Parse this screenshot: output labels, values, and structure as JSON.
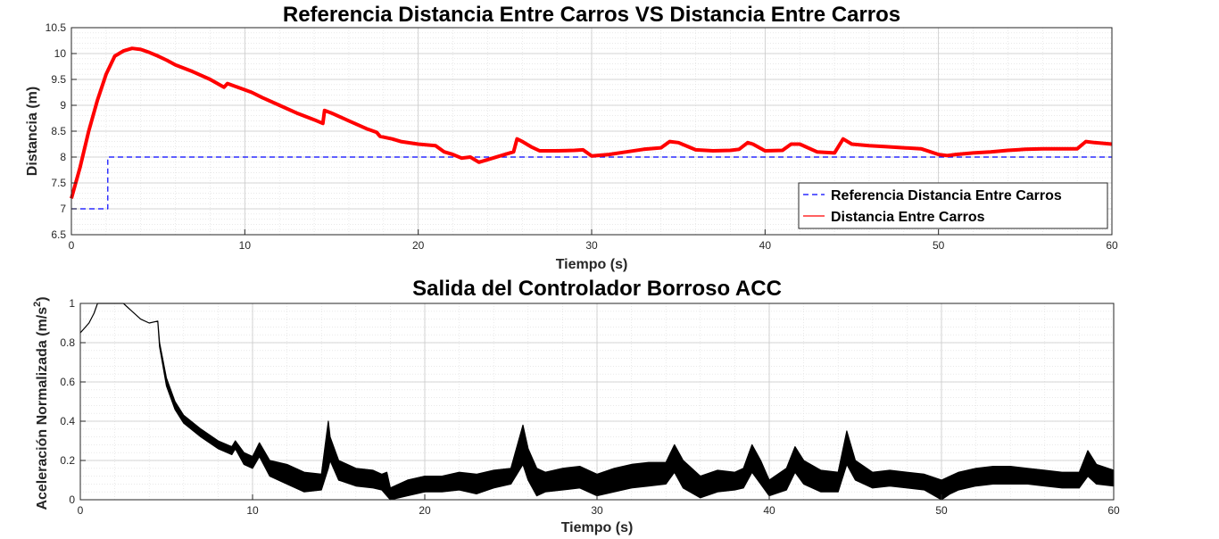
{
  "chart_data": [
    {
      "type": "line",
      "title": "Referencia Distancia Entre Carros VS Distancia Entre Carros",
      "xlabel": "Tiempo (s)",
      "ylabel": "Distancia (m)",
      "xlim": [
        0,
        60
      ],
      "ylim": [
        6.5,
        10.5
      ],
      "xticks": [
        0,
        10,
        20,
        30,
        40,
        50,
        60
      ],
      "yticks": [
        6.5,
        7,
        7.5,
        8,
        8.5,
        9,
        9.5,
        10,
        10.5
      ],
      "grid": true,
      "legend_position": "bottom-right",
      "series": [
        {
          "name": "Referencia Distancia Entre Carros",
          "color": "#0000ff",
          "style": "dashed",
          "x": [
            0,
            2.1,
            2.1,
            60
          ],
          "y": [
            7,
            7,
            8,
            8
          ]
        },
        {
          "name": "Distancia Entre Carros",
          "color": "#ff0000",
          "style": "solid",
          "x": [
            0,
            0.5,
            1,
            1.5,
            2,
            2.5,
            3,
            3.5,
            4,
            4.5,
            5,
            5.5,
            6,
            7,
            8,
            8.8,
            9,
            10,
            10.4,
            11,
            12,
            13,
            14,
            14.5,
            14.6,
            15,
            16,
            17,
            17.6,
            17.8,
            18.5,
            19,
            20,
            21,
            21.5,
            22,
            22.5,
            23,
            23.5,
            24,
            25,
            25.5,
            25.7,
            26,
            26.5,
            27,
            28,
            29,
            29.5,
            30,
            31,
            32,
            33,
            34,
            34.5,
            35,
            36,
            37,
            38,
            38.5,
            39,
            39.3,
            40,
            41,
            41.5,
            42,
            43,
            44,
            44.5,
            45,
            46,
            47,
            48,
            49,
            50,
            50.5,
            51,
            52,
            53,
            54,
            55,
            56,
            57,
            58,
            58.5,
            59,
            60
          ],
          "y": [
            7.2,
            7.8,
            8.5,
            9.1,
            9.6,
            9.95,
            10.05,
            10.1,
            10.08,
            10.02,
            9.95,
            9.87,
            9.78,
            9.65,
            9.5,
            9.35,
            9.42,
            9.3,
            9.25,
            9.15,
            9.0,
            8.85,
            8.72,
            8.65,
            8.9,
            8.85,
            8.7,
            8.55,
            8.48,
            8.4,
            8.35,
            8.3,
            8.25,
            8.22,
            8.1,
            8.05,
            7.98,
            8.0,
            7.9,
            7.95,
            8.05,
            8.1,
            8.35,
            8.3,
            8.2,
            8.12,
            8.12,
            8.13,
            8.14,
            8.02,
            8.05,
            8.1,
            8.15,
            8.18,
            8.3,
            8.28,
            8.14,
            8.12,
            8.13,
            8.15,
            8.28,
            8.25,
            8.12,
            8.13,
            8.25,
            8.25,
            8.1,
            8.08,
            8.35,
            8.25,
            8.22,
            8.2,
            8.18,
            8.16,
            8.05,
            8.03,
            8.05,
            8.08,
            8.1,
            8.13,
            8.15,
            8.16,
            8.16,
            8.16,
            8.3,
            8.28,
            8.25
          ]
        }
      ]
    },
    {
      "type": "line",
      "title": "Salida del Controlador Borroso ACC",
      "xlabel": "Tiempo (s)",
      "ylabel": "Aceleración Normalizada (m/s",
      "ylabel_superscript": "2",
      "ylabel_suffix": ")",
      "xlim": [
        0,
        60
      ],
      "ylim": [
        0,
        1
      ],
      "xticks": [
        0,
        10,
        20,
        30,
        40,
        50,
        60
      ],
      "yticks": [
        0,
        0.2,
        0.4,
        0.6,
        0.8,
        1
      ],
      "grid": true,
      "series": [
        {
          "name": "",
          "color": "#000000",
          "style": "band",
          "x": [
            0,
            0.5,
            0.8,
            1,
            1.5,
            2,
            2.5,
            3,
            3.5,
            4,
            4.5,
            4.6,
            5,
            5.5,
            6,
            7,
            8,
            8.8,
            9,
            9.5,
            10,
            10.4,
            11,
            12,
            13,
            14,
            14.4,
            14.5,
            15,
            16,
            17,
            17.5,
            17.8,
            18,
            19,
            20,
            21,
            22,
            23,
            24,
            25,
            25.7,
            26,
            26.5,
            27,
            28,
            29,
            30,
            31,
            32,
            33,
            34,
            34.5,
            35,
            36,
            37,
            38,
            38.5,
            39,
            39.5,
            40,
            41,
            41.5,
            42,
            43,
            44,
            44.5,
            45,
            46,
            47,
            48,
            49,
            50,
            50.5,
            51,
            52,
            53,
            54,
            55,
            56,
            57,
            58,
            58.5,
            59,
            60
          ],
          "upper": [
            0.85,
            0.9,
            0.95,
            1,
            1,
            1,
            1,
            0.96,
            0.92,
            0.9,
            0.91,
            0.8,
            0.62,
            0.5,
            0.43,
            0.36,
            0.3,
            0.27,
            0.3,
            0.24,
            0.22,
            0.29,
            0.2,
            0.18,
            0.14,
            0.13,
            0.4,
            0.32,
            0.2,
            0.16,
            0.15,
            0.13,
            0.14,
            0.06,
            0.1,
            0.12,
            0.12,
            0.14,
            0.13,
            0.15,
            0.16,
            0.38,
            0.26,
            0.16,
            0.14,
            0.16,
            0.17,
            0.13,
            0.16,
            0.18,
            0.19,
            0.19,
            0.28,
            0.2,
            0.12,
            0.15,
            0.14,
            0.16,
            0.28,
            0.2,
            0.1,
            0.16,
            0.27,
            0.2,
            0.15,
            0.14,
            0.35,
            0.2,
            0.14,
            0.15,
            0.14,
            0.13,
            0.1,
            0.12,
            0.14,
            0.16,
            0.17,
            0.17,
            0.16,
            0.15,
            0.14,
            0.14,
            0.25,
            0.18,
            0.15
          ],
          "lower": [
            0.85,
            0.9,
            0.95,
            1,
            1,
            1,
            1,
            0.96,
            0.92,
            0.9,
            0.91,
            0.78,
            0.58,
            0.46,
            0.39,
            0.32,
            0.26,
            0.23,
            0.26,
            0.18,
            0.16,
            0.22,
            0.12,
            0.08,
            0.04,
            0.05,
            0.16,
            0.2,
            0.1,
            0.07,
            0.06,
            0.05,
            0.02,
            0.0,
            0.02,
            0.04,
            0.04,
            0.05,
            0.03,
            0.06,
            0.08,
            0.18,
            0.1,
            0.02,
            0.04,
            0.05,
            0.06,
            0.02,
            0.04,
            0.06,
            0.07,
            0.08,
            0.14,
            0.06,
            0.01,
            0.04,
            0.05,
            0.06,
            0.14,
            0.08,
            0.02,
            0.05,
            0.14,
            0.08,
            0.04,
            0.04,
            0.18,
            0.1,
            0.06,
            0.07,
            0.06,
            0.05,
            0.0,
            0.03,
            0.05,
            0.07,
            0.08,
            0.08,
            0.08,
            0.07,
            0.06,
            0.06,
            0.12,
            0.08,
            0.07
          ]
        }
      ]
    }
  ]
}
